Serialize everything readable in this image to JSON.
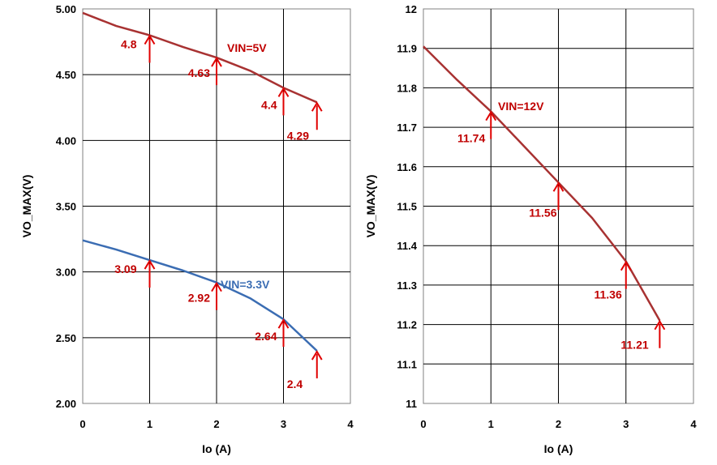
{
  "chart_data": [
    {
      "type": "line",
      "xlabel": "Io (A)",
      "ylabel": "VO_MAX(V)",
      "xlim": [
        0,
        4
      ],
      "ylim": [
        2.0,
        5.0
      ],
      "x_ticks": [
        "0",
        "1",
        "2",
        "3",
        "4"
      ],
      "y_ticks": [
        "2.00",
        "2.50",
        "3.00",
        "3.50",
        "4.00",
        "4.50",
        "5.00"
      ],
      "grid": true,
      "series": [
        {
          "name": "VIN=5V",
          "color": "#a83232",
          "x": [
            0,
            0.5,
            1,
            1.5,
            2,
            2.5,
            3,
            3.5
          ],
          "y": [
            4.97,
            4.87,
            4.8,
            4.71,
            4.63,
            4.53,
            4.4,
            4.29
          ],
          "points": [
            {
              "x": 1,
              "y": 4.8,
              "label": "4.8"
            },
            {
              "x": 2,
              "y": 4.63,
              "label": "4.63"
            },
            {
              "x": 3,
              "y": 4.4,
              "label": "4.4"
            },
            {
              "x": 3.5,
              "y": 4.29,
              "label": "4.29"
            }
          ]
        },
        {
          "name": "VIN=3.3V",
          "color": "#3b6db3",
          "x": [
            0,
            0.5,
            1,
            1.5,
            2,
            2.5,
            3,
            3.5
          ],
          "y": [
            3.24,
            3.17,
            3.09,
            3.01,
            2.92,
            2.8,
            2.64,
            2.4
          ],
          "points": [
            {
              "x": 1,
              "y": 3.09,
              "label": "3.09"
            },
            {
              "x": 2,
              "y": 2.92,
              "label": "2.92"
            },
            {
              "x": 3,
              "y": 2.64,
              "label": "2.64"
            },
            {
              "x": 3.5,
              "y": 2.4,
              "label": "2.4"
            }
          ]
        }
      ]
    },
    {
      "type": "line",
      "xlabel": "Io (A)",
      "ylabel": "VO_MAX(V)",
      "xlim": [
        0,
        4
      ],
      "ylim": [
        11,
        12
      ],
      "x_ticks": [
        "0",
        "1",
        "2",
        "3",
        "4"
      ],
      "y_ticks": [
        "11",
        "11.1",
        "11.2",
        "11.3",
        "11.4",
        "11.5",
        "11.6",
        "11.7",
        "11.8",
        "11.9",
        "12"
      ],
      "grid": true,
      "series": [
        {
          "name": "VIN=12V",
          "color": "#a83232",
          "x": [
            0,
            0.5,
            1,
            1.5,
            2,
            2.5,
            3,
            3.5
          ],
          "y": [
            11.905,
            11.82,
            11.74,
            11.65,
            11.56,
            11.47,
            11.36,
            11.21
          ],
          "points": [
            {
              "x": 1,
              "y": 11.74,
              "label": "11.74"
            },
            {
              "x": 2,
              "y": 11.56,
              "label": "11.56"
            },
            {
              "x": 3,
              "y": 11.36,
              "label": "11.36"
            },
            {
              "x": 3.5,
              "y": 11.21,
              "label": "11.21"
            }
          ]
        }
      ]
    }
  ]
}
